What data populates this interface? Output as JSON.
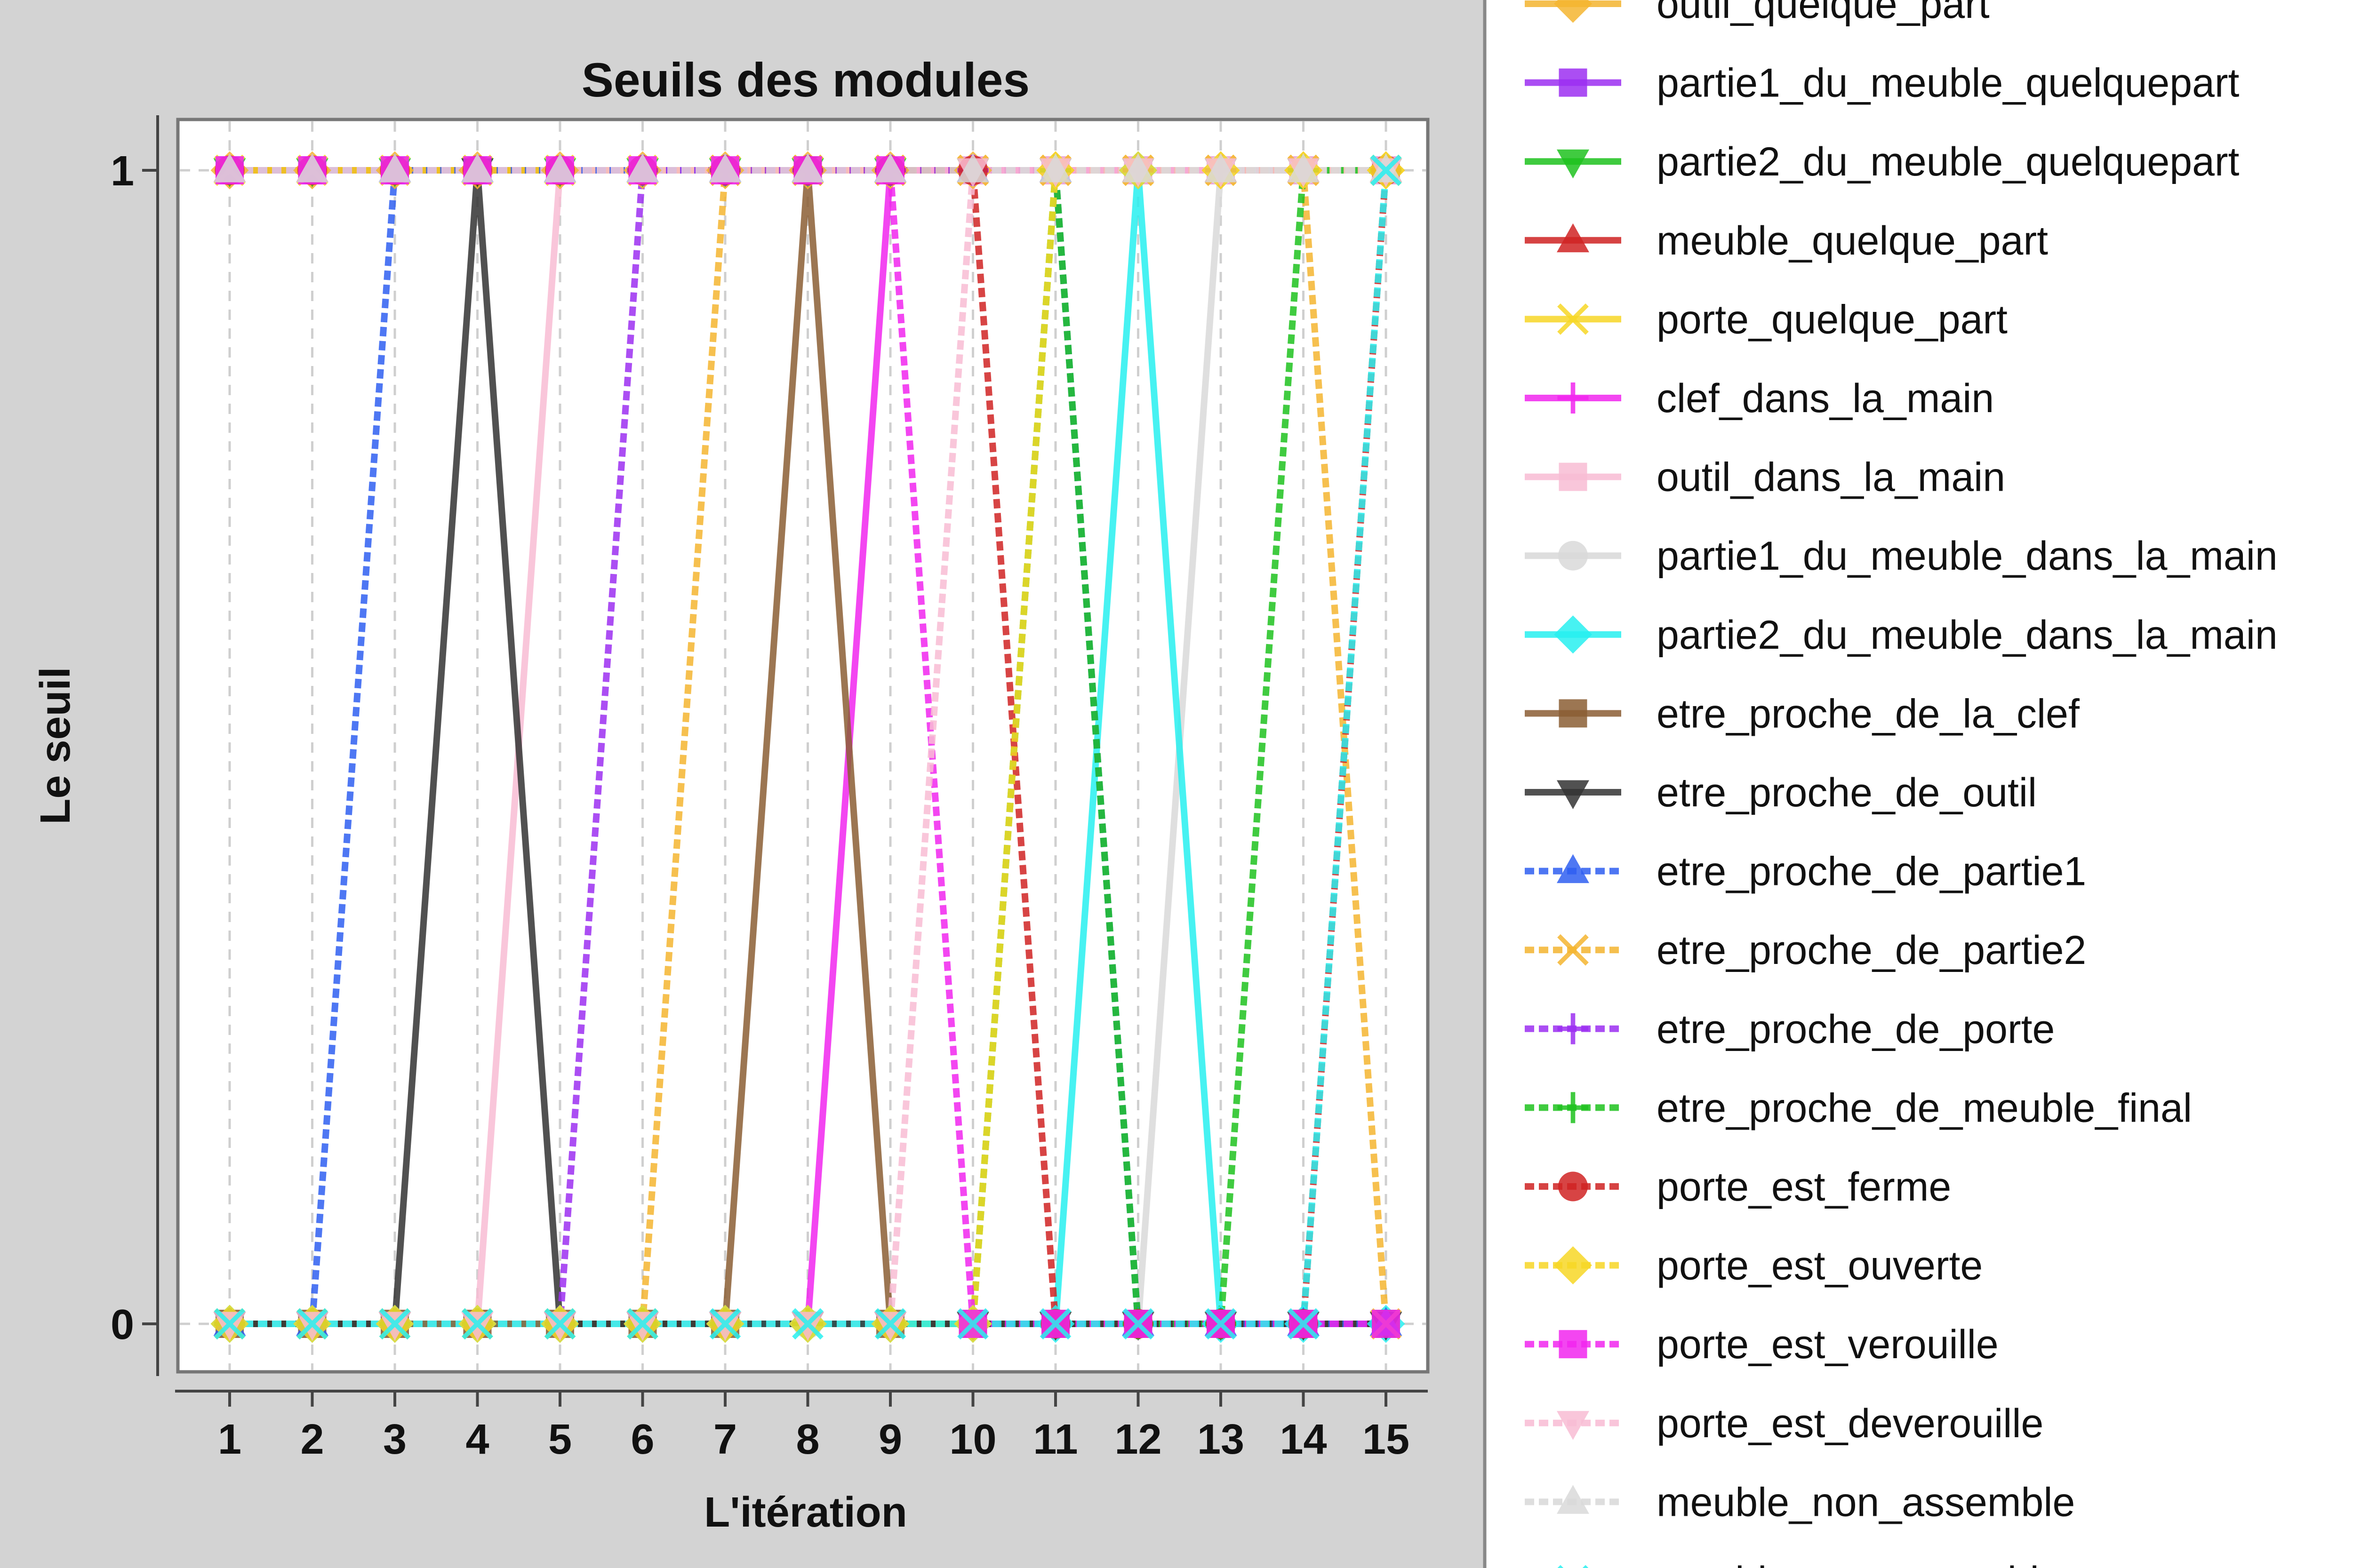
{
  "chart_data": {
    "type": "line",
    "title": "Seuils des modules",
    "xlabel": "L'itération",
    "ylabel": "Le seuil",
    "x": [
      1,
      2,
      3,
      4,
      5,
      6,
      7,
      8,
      9,
      10,
      11,
      12,
      13,
      14,
      15
    ],
    "xlim": [
      0.4,
      15.6
    ],
    "ylim": [
      -0.05,
      1.05
    ],
    "yticks": [
      0,
      1
    ],
    "grid": "vertical dashed",
    "legend_position": "right",
    "series": [
      {
        "name": "outil_quelque_part",
        "color": "#f4b530",
        "dash": "solid",
        "marker": "diamond",
        "values": [
          1,
          1,
          1,
          1,
          1,
          1,
          1,
          1,
          1,
          1,
          1,
          1,
          1,
          1,
          1
        ]
      },
      {
        "name": "partie1_du_meuble_quelquepart",
        "color": "#9c2ff1",
        "dash": "solid",
        "marker": "square",
        "values": [
          1,
          1,
          1,
          1,
          1,
          1,
          1,
          1,
          1,
          1,
          1,
          1,
          1,
          1,
          1
        ]
      },
      {
        "name": "partie2_du_meuble_quelquepart",
        "color": "#1ec21e",
        "dash": "solid",
        "marker": "triangle-down",
        "values": [
          1,
          1,
          1,
          1,
          1,
          1,
          1,
          1,
          1,
          1,
          1,
          1,
          1,
          1,
          1
        ]
      },
      {
        "name": "meuble_quelque_part",
        "color": "#d02323",
        "dash": "solid",
        "marker": "triangle-up",
        "values": [
          1,
          1,
          1,
          1,
          1,
          1,
          1,
          1,
          1,
          1,
          1,
          1,
          1,
          1,
          1
        ]
      },
      {
        "name": "porte_quelque_part",
        "color": "#f7d726",
        "dash": "solid",
        "marker": "x",
        "values": [
          1,
          1,
          1,
          1,
          1,
          1,
          1,
          1,
          1,
          1,
          1,
          1,
          1,
          1,
          1
        ]
      },
      {
        "name": "clef_dans_la_main",
        "color": "#f126ef",
        "dash": "solid",
        "marker": "plus",
        "values": [
          0,
          0,
          0,
          0,
          0,
          0,
          0,
          0,
          1,
          1,
          1,
          1,
          1,
          1,
          1
        ]
      },
      {
        "name": "outil_dans_la_main",
        "color": "#f8bcd4",
        "dash": "solid",
        "marker": "square",
        "values": [
          0,
          0,
          0,
          0,
          1,
          1,
          1,
          1,
          1,
          1,
          1,
          1,
          1,
          1,
          1
        ]
      },
      {
        "name": "partie1_du_meuble_dans_la_main",
        "color": "#d9d9d9",
        "dash": "solid",
        "marker": "circle",
        "values": [
          0,
          0,
          0,
          0,
          0,
          0,
          0,
          0,
          0,
          0,
          0,
          0,
          1,
          1,
          1
        ]
      },
      {
        "name": "partie2_du_meuble_dans_la_main",
        "color": "#27f0f0",
        "dash": "solid",
        "marker": "diamond",
        "values": [
          0,
          0,
          0,
          0,
          0,
          0,
          0,
          0,
          0,
          0,
          0,
          1,
          0,
          0,
          0
        ]
      },
      {
        "name": "etre_proche_de_la_clef",
        "color": "#8b5e34",
        "dash": "solid",
        "marker": "square",
        "values": [
          0,
          0,
          0,
          0,
          0,
          0,
          0,
          1,
          0,
          0,
          0,
          0,
          0,
          0,
          0
        ]
      },
      {
        "name": "etre_proche_de_outil",
        "color": "#333333",
        "dash": "solid",
        "marker": "triangle-down",
        "values": [
          0,
          0,
          0,
          1,
          0,
          0,
          0,
          0,
          0,
          0,
          0,
          0,
          0,
          0,
          0
        ]
      },
      {
        "name": "etre_proche_de_partie1",
        "color": "#2f5ff1",
        "dash": "dashed",
        "marker": "triangle-up",
        "values": [
          0,
          0,
          1,
          1,
          1,
          1,
          1,
          1,
          1,
          1,
          1,
          0,
          0,
          0,
          0
        ]
      },
      {
        "name": "etre_proche_de_partie2",
        "color": "#f4b530",
        "dash": "dashed",
        "marker": "x",
        "values": [
          0,
          0,
          0,
          0,
          0,
          0,
          1,
          1,
          1,
          1,
          1,
          1,
          1,
          1,
          0
        ]
      },
      {
        "name": "etre_proche_de_porte",
        "color": "#9c2ff1",
        "dash": "dashed",
        "marker": "plus",
        "values": [
          0,
          0,
          0,
          0,
          0,
          1,
          1,
          1,
          1,
          1,
          1,
          1,
          1,
          1,
          1
        ]
      },
      {
        "name": "etre_proche_de_meuble_final",
        "color": "#1ec21e",
        "dash": "dashed",
        "marker": "plus",
        "values": [
          0,
          0,
          0,
          0,
          0,
          0,
          0,
          0,
          0,
          0,
          1,
          0,
          0,
          1,
          1
        ]
      },
      {
        "name": "porte_est_ferme",
        "color": "#d02323",
        "dash": "dashed",
        "marker": "circle",
        "values": [
          1,
          1,
          1,
          1,
          1,
          1,
          1,
          1,
          1,
          1,
          0,
          0,
          0,
          0,
          1
        ]
      },
      {
        "name": "porte_est_ouverte",
        "color": "#f7d726",
        "dash": "dashed",
        "marker": "diamond",
        "values": [
          0,
          0,
          0,
          0,
          0,
          0,
          0,
          0,
          0,
          0,
          1,
          1,
          1,
          1,
          1
        ]
      },
      {
        "name": "porte_est_verouille",
        "color": "#f126ef",
        "dash": "dashed",
        "marker": "square",
        "values": [
          1,
          1,
          1,
          1,
          1,
          1,
          1,
          1,
          1,
          0,
          0,
          0,
          0,
          0,
          0
        ]
      },
      {
        "name": "porte_est_deverouille",
        "color": "#f8bcd4",
        "dash": "dashed",
        "marker": "triangle-down",
        "values": [
          0,
          0,
          0,
          0,
          0,
          0,
          0,
          0,
          0,
          1,
          1,
          1,
          1,
          1,
          1
        ]
      },
      {
        "name": "meuble_non_assemble",
        "color": "#d9d9d9",
        "dash": "dashed",
        "marker": "triangle-up",
        "values": [
          1,
          1,
          1,
          1,
          1,
          1,
          1,
          1,
          1,
          1,
          1,
          1,
          1,
          1,
          1
        ]
      },
      {
        "name": "meuble_est_assemble",
        "color": "#27f0f0",
        "dash": "dashed",
        "marker": "x",
        "values": [
          0,
          0,
          0,
          0,
          0,
          0,
          0,
          0,
          0,
          0,
          0,
          0,
          0,
          0,
          1
        ]
      }
    ]
  }
}
